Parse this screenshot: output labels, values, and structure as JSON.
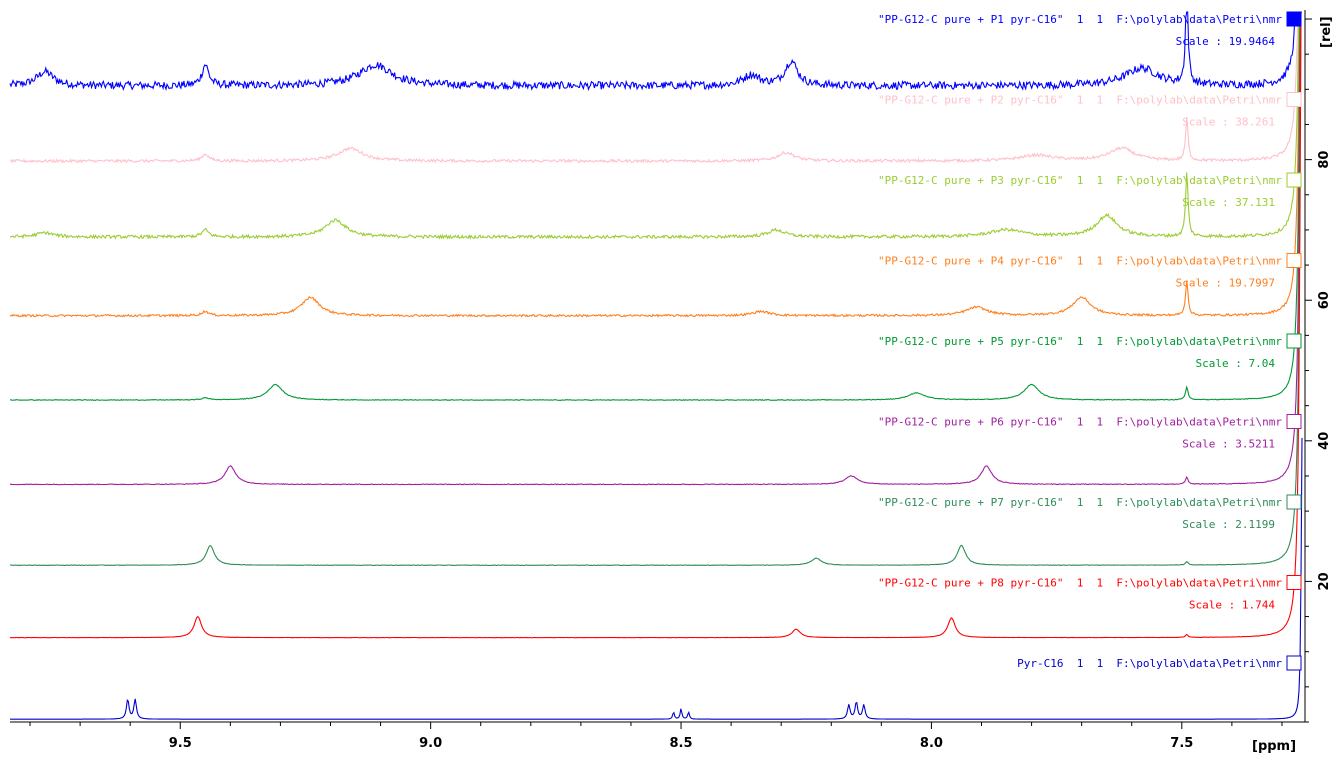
{
  "chart_data": {
    "type": "line",
    "title": "",
    "xlabel": "[ppm]",
    "ylabel": "[rel]",
    "x_reversed": true,
    "xlim": [
      9.84,
      7.26
    ],
    "ylim": [
      0,
      101
    ],
    "x_ticks": [
      9.5,
      9.0,
      8.5,
      8.0,
      7.5
    ],
    "x_tick_labels": [
      "9.5",
      "9.0",
      "8.5",
      "8.0",
      "7.5"
    ],
    "y_ticks": [
      20,
      40,
      60,
      80
    ],
    "y_tick_labels": [
      "20",
      "40",
      "60",
      "80"
    ],
    "solvent_peak_ppm": 7.26,
    "grid": false,
    "series": [
      {
        "name": "\"PP-G12-C pure + P1 pyr-C16\"  1  1  F:\\polylab\\data\\Petri\\nmr",
        "scale": "Scale : 19.9464",
        "color": "#0000ff",
        "baseline": 90.5,
        "noise": 0.55,
        "peaks": [
          [
            9.77,
            2.0,
            0.02
          ],
          [
            9.45,
            3.0,
            0.008
          ],
          [
            9.11,
            3.0,
            0.04
          ],
          [
            8.36,
            1.5,
            0.02
          ],
          [
            8.28,
            3.5,
            0.015
          ],
          [
            7.58,
            2.5,
            0.04
          ],
          [
            7.49,
            14,
            0.003
          ]
        ]
      },
      {
        "name": "\"PP-G12-C pure + P2 pyr-C16\"  1  1  F:\\polylab\\data\\Petri\\nmr",
        "scale": "Scale : 38.261",
        "color": "#ffc0cb",
        "baseline": 79.8,
        "noise": 0.2,
        "peaks": [
          [
            9.45,
            1.0,
            0.008
          ],
          [
            9.16,
            1.8,
            0.03
          ],
          [
            8.29,
            1.2,
            0.02
          ],
          [
            7.79,
            0.8,
            0.04
          ],
          [
            7.62,
            1.8,
            0.03
          ],
          [
            7.49,
            6,
            0.003
          ]
        ]
      },
      {
        "name": "\"PP-G12-C pure + P3 pyr-C16\"  1  1  F:\\polylab\\data\\Petri\\nmr",
        "scale": "Scale : 37.131",
        "color": "#9acd32",
        "baseline": 69.0,
        "noise": 0.22,
        "peaks": [
          [
            9.77,
            0.6,
            0.02
          ],
          [
            9.45,
            1.0,
            0.008
          ],
          [
            9.19,
            2.4,
            0.025
          ],
          [
            8.31,
            1.0,
            0.02
          ],
          [
            7.85,
            1.0,
            0.04
          ],
          [
            7.65,
            3.0,
            0.025
          ],
          [
            7.49,
            9,
            0.003
          ]
        ]
      },
      {
        "name": "\"PP-G12-C pure + P4 pyr-C16\"  1  1  F:\\polylab\\data\\Petri\\nmr",
        "scale": "Scale : 19.7997",
        "color": "#ff7f1f",
        "baseline": 57.8,
        "noise": 0.15,
        "peaks": [
          [
            9.45,
            0.6,
            0.008
          ],
          [
            9.24,
            2.6,
            0.022
          ],
          [
            8.34,
            0.6,
            0.02
          ],
          [
            7.91,
            1.2,
            0.025
          ],
          [
            7.7,
            2.6,
            0.022
          ],
          [
            7.49,
            5,
            0.003
          ]
        ]
      },
      {
        "name": "\"PP-G12-C pure + P5 pyr-C16\"  1  1  F:\\polylab\\data\\Petri\\nmr",
        "scale": "Scale : 7.04",
        "color": "#009933",
        "baseline": 45.8,
        "noise": 0.05,
        "peaks": [
          [
            9.45,
            0.3,
            0.008
          ],
          [
            9.31,
            2.2,
            0.018
          ],
          [
            8.03,
            1.0,
            0.02
          ],
          [
            7.8,
            2.2,
            0.018
          ],
          [
            7.49,
            1.8,
            0.003
          ]
        ]
      },
      {
        "name": "\"PP-G12-C pure + P6 pyr-C16\"  1  1  F:\\polylab\\data\\Petri\\nmr",
        "scale": "Scale : 3.5211",
        "color": "#a020a0",
        "baseline": 33.8,
        "noise": 0.05,
        "peaks": [
          [
            9.4,
            2.6,
            0.013
          ],
          [
            8.16,
            1.2,
            0.015
          ],
          [
            7.89,
            2.6,
            0.013
          ],
          [
            7.49,
            1.0,
            0.003
          ]
        ]
      },
      {
        "name": "\"PP-G12-C pure + P7 pyr-C16\"  1  1  F:\\polylab\\data\\Petri\\nmr",
        "scale": "Scale : 2.1199",
        "color": "#2e8b57",
        "baseline": 22.3,
        "noise": 0.03,
        "peaks": [
          [
            9.44,
            2.8,
            0.01
          ],
          [
            8.23,
            1.0,
            0.012
          ],
          [
            7.94,
            2.8,
            0.01
          ],
          [
            7.49,
            0.5,
            0.003
          ]
        ]
      },
      {
        "name": "\"PP-G12-C pure + P8 pyr-C16\"  1  1  F:\\polylab\\data\\Petri\\nmr",
        "scale": "Scale : 1.744",
        "color": "#ff0000",
        "baseline": 12.0,
        "noise": 0.02,
        "peaks": [
          [
            9.465,
            3.0,
            0.009
          ],
          [
            8.27,
            1.2,
            0.01
          ],
          [
            7.96,
            2.8,
            0.009
          ],
          [
            7.49,
            0.4,
            0.003
          ]
        ]
      },
      {
        "name": "Pyr-C16  1  1  F:\\polylab\\data\\Petri\\nmr",
        "scale": "",
        "color": "#0000cc",
        "baseline": 0.4,
        "noise": 0.0,
        "peaks": [
          [
            9.605,
            2.8,
            0.003
          ],
          [
            9.59,
            2.8,
            0.003
          ],
          [
            8.515,
            1.0,
            0.002
          ],
          [
            8.5,
            1.5,
            0.002
          ],
          [
            8.485,
            1.0,
            0.002
          ],
          [
            8.165,
            2.0,
            0.003
          ],
          [
            8.15,
            2.4,
            0.003
          ],
          [
            8.135,
            2.0,
            0.003
          ],
          [
            7.26,
            40,
            0.002
          ]
        ]
      }
    ]
  }
}
